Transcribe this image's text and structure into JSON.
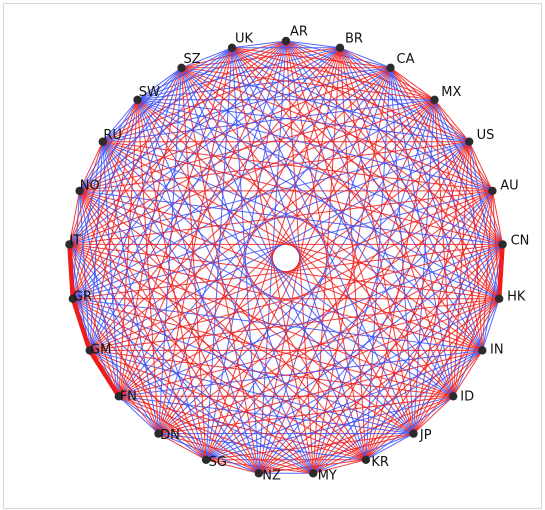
{
  "diagram": {
    "type": "chord-network",
    "nodes": [
      {
        "id": "AR",
        "label": "AR"
      },
      {
        "id": "BR",
        "label": "BR"
      },
      {
        "id": "CA",
        "label": "CA"
      },
      {
        "id": "MX",
        "label": "MX"
      },
      {
        "id": "US",
        "label": "US"
      },
      {
        "id": "AU",
        "label": "AU"
      },
      {
        "id": "CN",
        "label": "CN"
      },
      {
        "id": "HK",
        "label": "HK"
      },
      {
        "id": "IN",
        "label": "IN"
      },
      {
        "id": "ID",
        "label": "ID"
      },
      {
        "id": "JP",
        "label": "JP"
      },
      {
        "id": "KR",
        "label": "KR"
      },
      {
        "id": "MY",
        "label": "MY"
      },
      {
        "id": "NZ",
        "label": "NZ"
      },
      {
        "id": "SG",
        "label": "SG"
      },
      {
        "id": "DN",
        "label": "DN"
      },
      {
        "id": "FN",
        "label": "FN"
      },
      {
        "id": "GM",
        "label": "GM"
      },
      {
        "id": "GR",
        "label": "GR"
      },
      {
        "id": "IT",
        "label": "IT"
      },
      {
        "id": "NO",
        "label": "NO"
      },
      {
        "id": "RU",
        "label": "RU"
      },
      {
        "id": "SW",
        "label": "SW"
      },
      {
        "id": "SZ",
        "label": "SZ"
      },
      {
        "id": "UK",
        "label": "UK"
      }
    ],
    "edge_colors": {
      "negative": "#ee1c1c",
      "positive": "#3a4ef5"
    },
    "node_color": "#2b2b2b",
    "strong_links": [
      {
        "from": "CN",
        "to": "HK",
        "color": "#ee1c1c"
      },
      {
        "from": "IT",
        "to": "GR",
        "color": "#ee1c1c"
      },
      {
        "from": "GR",
        "to": "GM",
        "color": "#ee1c1c"
      },
      {
        "from": "GM",
        "to": "FN",
        "color": "#ee1c1c"
      }
    ]
  }
}
